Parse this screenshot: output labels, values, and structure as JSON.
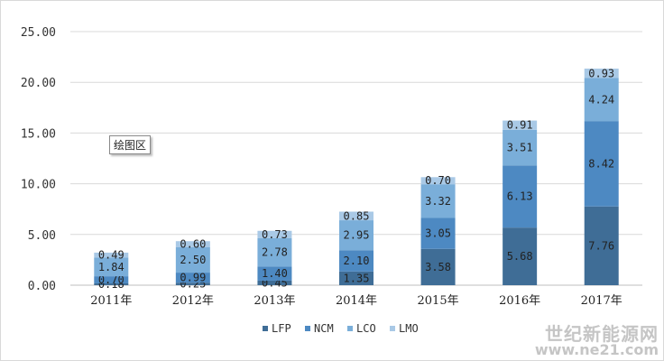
{
  "plot_tag": "绘图区",
  "watermark": {
    "line1": "世纪新能源网",
    "line2": "www.ne21.com"
  },
  "colors": {
    "LFP": "#3f6d96",
    "NCM": "#4d89c2",
    "LCO": "#7aaed9",
    "LMO": "#a9c9e6"
  },
  "chart_data": {
    "type": "bar",
    "stacked": true,
    "categories": [
      "2011年",
      "2012年",
      "2013年",
      "2014年",
      "2015年",
      "2016年",
      "2017年"
    ],
    "series": [
      {
        "name": "LFP",
        "values": [
          0.18,
          0.25,
          0.45,
          1.35,
          3.58,
          5.68,
          7.76
        ]
      },
      {
        "name": "NCM",
        "values": [
          0.7,
          0.99,
          1.4,
          2.1,
          3.05,
          6.13,
          8.42
        ]
      },
      {
        "name": "LCO",
        "values": [
          1.84,
          2.5,
          2.78,
          2.95,
          3.32,
          3.51,
          4.24
        ]
      },
      {
        "name": "LMO",
        "values": [
          0.49,
          0.6,
          0.73,
          0.85,
          0.7,
          0.91,
          0.93
        ]
      }
    ],
    "yticks": [
      "0.00",
      "5.00",
      "10.00",
      "15.00",
      "20.00",
      "25.00"
    ],
    "ylim": [
      0,
      25
    ],
    "grid": true,
    "legend": "bottom-center",
    "title": "",
    "xlabel": "",
    "ylabel": ""
  }
}
